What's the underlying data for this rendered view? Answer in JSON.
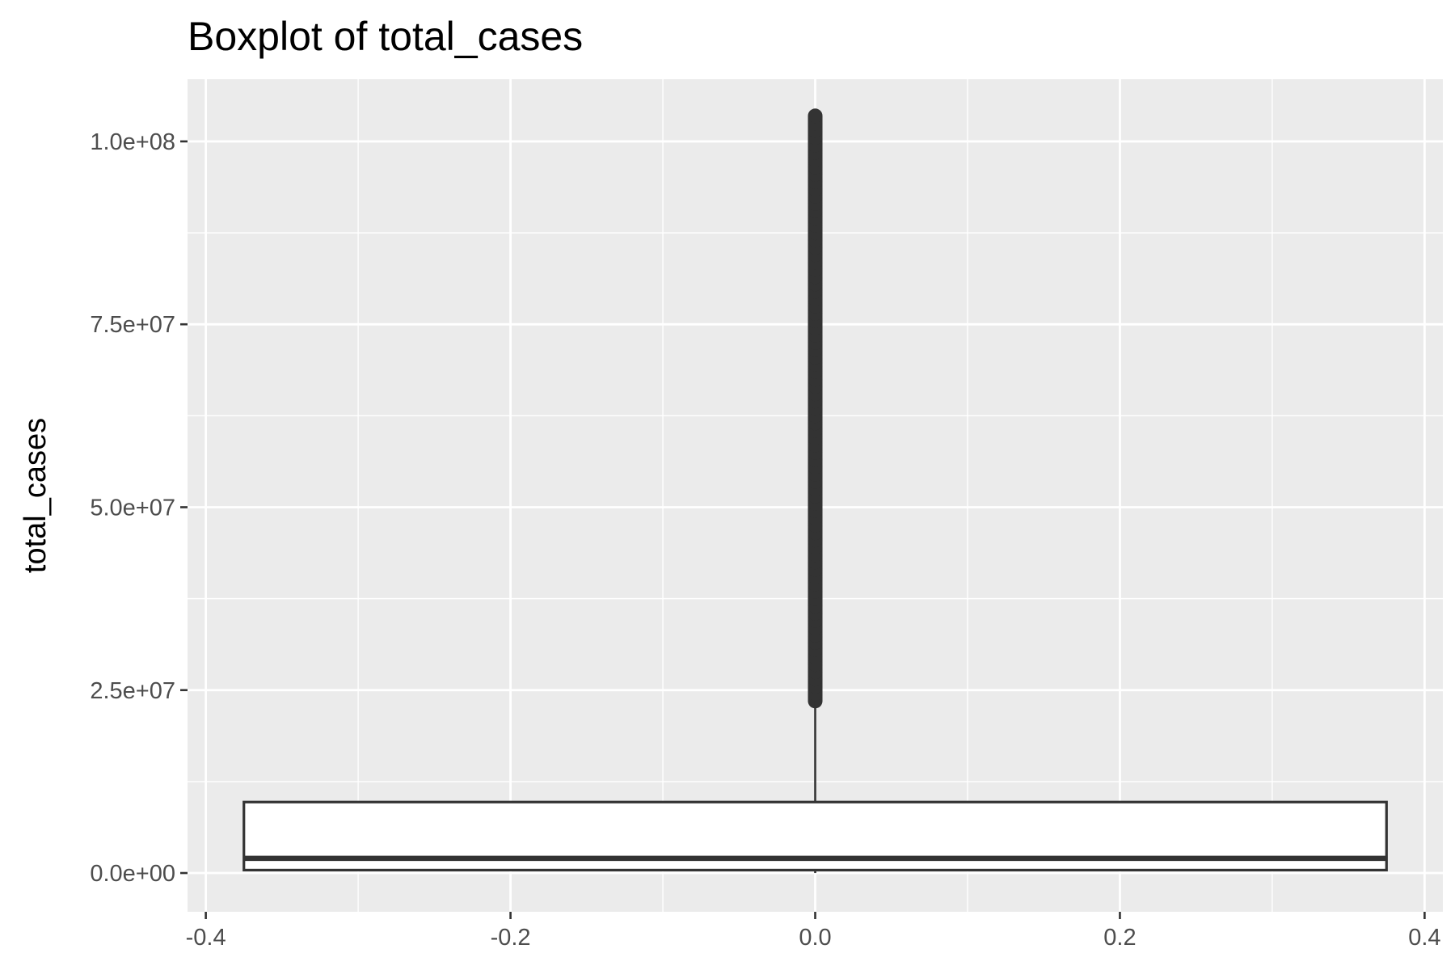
{
  "chart_data": {
    "type": "boxplot",
    "title": "Boxplot of total_cases",
    "xlabel": "",
    "ylabel": "total_cases",
    "x_ticks": [
      {
        "value": -0.4,
        "label": "-0.4"
      },
      {
        "value": -0.2,
        "label": "-0.2"
      },
      {
        "value": 0.0,
        "label": "0.0"
      },
      {
        "value": 0.2,
        "label": "0.2"
      },
      {
        "value": 0.4,
        "label": "0.4"
      }
    ],
    "y_ticks": [
      {
        "value": 0,
        "label": "0.0e+00"
      },
      {
        "value": 25000000,
        "label": "2.5e+07"
      },
      {
        "value": 50000000,
        "label": "5.0e+07"
      },
      {
        "value": 75000000,
        "label": "7.5e+07"
      },
      {
        "value": 100000000,
        "label": "1.0e+08"
      }
    ],
    "xlim": [
      -0.412,
      0.412
    ],
    "ylim": [
      -5300000,
      108500000
    ],
    "grid": true,
    "box": {
      "x_center": 0.0,
      "x_left": -0.375,
      "x_right": 0.375,
      "min": 0,
      "q1": 400000,
      "median": 2000000,
      "q3": 9700000,
      "whisker_low": 0,
      "whisker_high": 23500000,
      "outlier_min": 23500000,
      "outlier_max": 103500000
    },
    "colors": {
      "panel_background": "#ebebeb",
      "grid_line": "#ffffff",
      "box_fill": "#ffffff",
      "box_line": "#333333",
      "outlier": "#333333"
    }
  }
}
